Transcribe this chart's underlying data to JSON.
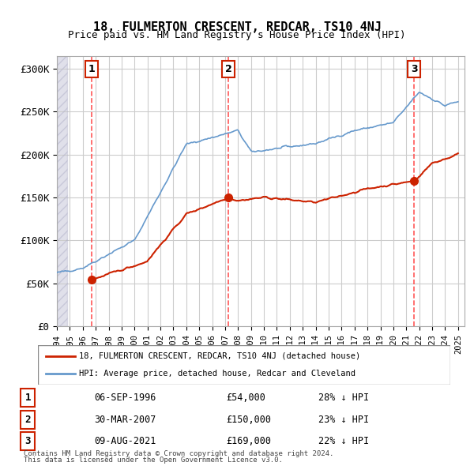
{
  "title": "18, FULMERTON CRESCENT, REDCAR, TS10 4NJ",
  "subtitle": "Price paid vs. HM Land Registry's House Price Index (HPI)",
  "ylabel_ticks": [
    "£0",
    "£50K",
    "£100K",
    "£150K",
    "£200K",
    "£250K",
    "£300K"
  ],
  "ytick_values": [
    0,
    50000,
    100000,
    150000,
    200000,
    250000,
    300000
  ],
  "ylim": [
    0,
    315000
  ],
  "xlim_start": 1994.0,
  "xlim_end": 2025.5,
  "purchases": [
    {
      "num": 1,
      "date": "06-SEP-1996",
      "price": 54000,
      "year": 1996.67,
      "pct": "28% ↓ HPI"
    },
    {
      "num": 2,
      "date": "30-MAR-2007",
      "price": 150000,
      "year": 2007.25,
      "pct": "23% ↓ HPI"
    },
    {
      "num": 3,
      "date": "09-AUG-2021",
      "price": 169000,
      "year": 2021.6,
      "pct": "22% ↓ HPI"
    }
  ],
  "legend_line1": "18, FULMERTON CRESCENT, REDCAR, TS10 4NJ (detached house)",
  "legend_line2": "HPI: Average price, detached house, Redcar and Cleveland",
  "footer1": "Contains HM Land Registry data © Crown copyright and database right 2024.",
  "footer2": "This data is licensed under the Open Government Licence v3.0.",
  "hpi_color": "#6699cc",
  "price_color": "#cc2200",
  "dashed_color": "#ff4444",
  "background_hatch": "#e8e8f0",
  "grid_color": "#cccccc"
}
